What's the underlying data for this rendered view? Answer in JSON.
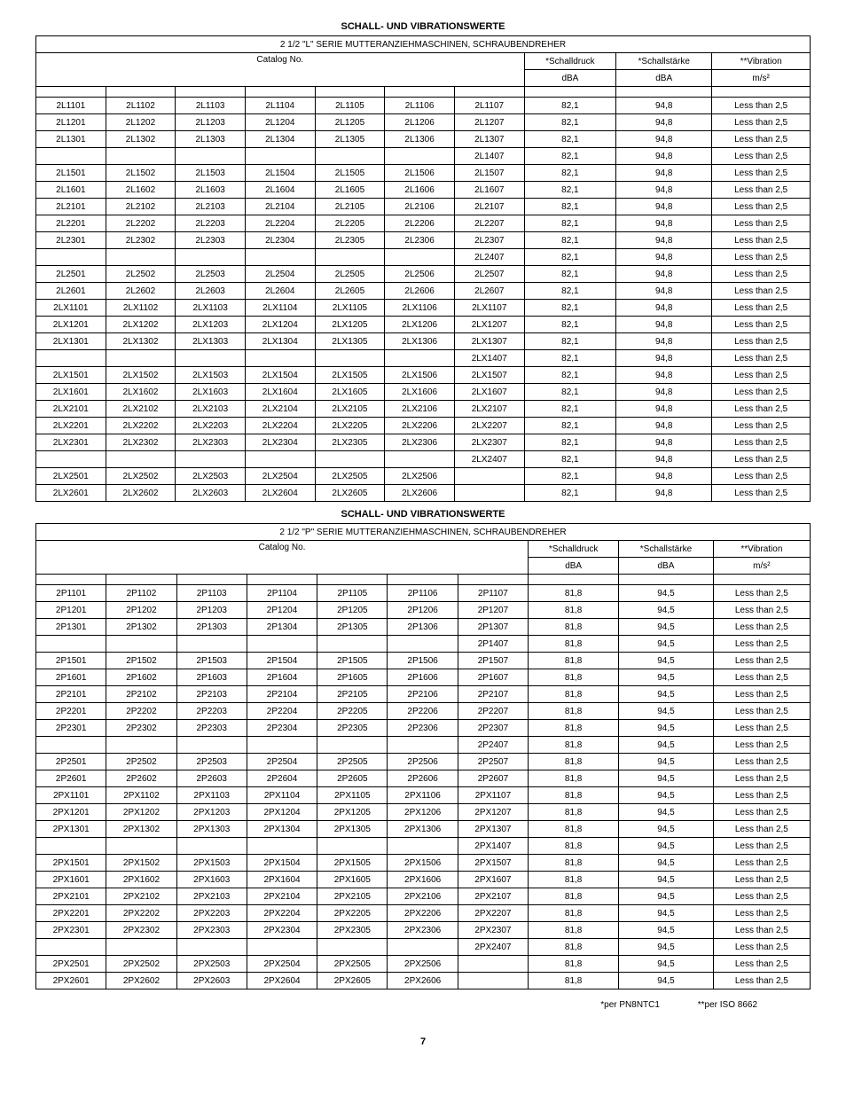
{
  "titles": {
    "t1": "SCHALL- UND VIBRATIONSWERTE",
    "t2": "SCHALL- UND VIBRATIONSWERTE"
  },
  "headers": {
    "banner1": "2 1/2 \"L\" SERIE MUTTERANZIEHMASCHINEN, SCHRAUBENDREHER",
    "banner2": "2 1/2 \"P\" SERIE MUTTERANZIEHMASCHINEN, SCHRAUBENDREHER",
    "catalog": "Catalog No.",
    "schalldruck": "*Schalldruck",
    "schallstarke": "*Schallstärke",
    "vibration": "**Vibration",
    "dba": "dBA",
    "ms2": "m/s²"
  },
  "table1": {
    "dba1": "82,1",
    "dba2": "94,8",
    "vib": "Less than 2,5",
    "rows": [
      [
        "2L1101",
        "2L1102",
        "2L1103",
        "2L1104",
        "2L1105",
        "2L1106",
        "2L1107"
      ],
      [
        "2L1201",
        "2L1202",
        "2L1203",
        "2L1204",
        "2L1205",
        "2L1206",
        "2L1207"
      ],
      [
        "2L1301",
        "2L1302",
        "2L1303",
        "2L1304",
        "2L1305",
        "2L1306",
        "2L1307"
      ],
      [
        "",
        "",
        "",
        "",
        "",
        "",
        "2L1407"
      ],
      [
        "2L1501",
        "2L1502",
        "2L1503",
        "2L1504",
        "2L1505",
        "2L1506",
        "2L1507"
      ],
      [
        "2L1601",
        "2L1602",
        "2L1603",
        "2L1604",
        "2L1605",
        "2L1606",
        "2L1607"
      ],
      [
        "2L2101",
        "2L2102",
        "2L2103",
        "2L2104",
        "2L2105",
        "2L2106",
        "2L2107"
      ],
      [
        "2L2201",
        "2L2202",
        "2L2203",
        "2L2204",
        "2L2205",
        "2L2206",
        "2L2207"
      ],
      [
        "2L2301",
        "2L2302",
        "2L2303",
        "2L2304",
        "2L2305",
        "2L2306",
        "2L2307"
      ],
      [
        "",
        "",
        "",
        "",
        "",
        "",
        "2L2407"
      ],
      [
        "2L2501",
        "2L2502",
        "2L2503",
        "2L2504",
        "2L2505",
        "2L2506",
        "2L2507"
      ],
      [
        "2L2601",
        "2L2602",
        "2L2603",
        "2L2604",
        "2L2605",
        "2L2606",
        "2L2607"
      ],
      [
        "2LX1101",
        "2LX1102",
        "2LX1103",
        "2LX1104",
        "2LX1105",
        "2LX1106",
        "2LX1107"
      ],
      [
        "2LX1201",
        "2LX1202",
        "2LX1203",
        "2LX1204",
        "2LX1205",
        "2LX1206",
        "2LX1207"
      ],
      [
        "2LX1301",
        "2LX1302",
        "2LX1303",
        "2LX1304",
        "2LX1305",
        "2LX1306",
        "2LX1307"
      ],
      [
        "",
        "",
        "",
        "",
        "",
        "",
        "2LX1407"
      ],
      [
        "2LX1501",
        "2LX1502",
        "2LX1503",
        "2LX1504",
        "2LX1505",
        "2LX1506",
        "2LX1507"
      ],
      [
        "2LX1601",
        "2LX1602",
        "2LX1603",
        "2LX1604",
        "2LX1605",
        "2LX1606",
        "2LX1607"
      ],
      [
        "2LX2101",
        "2LX2102",
        "2LX2103",
        "2LX2104",
        "2LX2105",
        "2LX2106",
        "2LX2107"
      ],
      [
        "2LX2201",
        "2LX2202",
        "2LX2203",
        "2LX2204",
        "2LX2205",
        "2LX2206",
        "2LX2207"
      ],
      [
        "2LX2301",
        "2LX2302",
        "2LX2303",
        "2LX2304",
        "2LX2305",
        "2LX2306",
        "2LX2307"
      ],
      [
        "",
        "",
        "",
        "",
        "",
        "",
        "2LX2407"
      ],
      [
        "2LX2501",
        "2LX2502",
        "2LX2503",
        "2LX2504",
        "2LX2505",
        "2LX2506",
        ""
      ],
      [
        "2LX2601",
        "2LX2602",
        "2LX2603",
        "2LX2604",
        "2LX2605",
        "2LX2606",
        ""
      ]
    ]
  },
  "table2": {
    "dba1": "81,8",
    "dba2": "94,5",
    "vib": "Less than 2,5",
    "rows": [
      [
        "2P1101",
        "2P1102",
        "2P1103",
        "2P1104",
        "2P1105",
        "2P1106",
        "2P1107"
      ],
      [
        "2P1201",
        "2P1202",
        "2P1203",
        "2P1204",
        "2P1205",
        "2P1206",
        "2P1207"
      ],
      [
        "2P1301",
        "2P1302",
        "2P1303",
        "2P1304",
        "2P1305",
        "2P1306",
        "2P1307"
      ],
      [
        "",
        "",
        "",
        "",
        "",
        "",
        "2P1407"
      ],
      [
        "2P1501",
        "2P1502",
        "2P1503",
        "2P1504",
        "2P1505",
        "2P1506",
        "2P1507"
      ],
      [
        "2P1601",
        "2P1602",
        "2P1603",
        "2P1604",
        "2P1605",
        "2P1606",
        "2P1607"
      ],
      [
        "2P2101",
        "2P2102",
        "2P2103",
        "2P2104",
        "2P2105",
        "2P2106",
        "2P2107"
      ],
      [
        "2P2201",
        "2P2202",
        "2P2203",
        "2P2204",
        "2P2205",
        "2P2206",
        "2P2207"
      ],
      [
        "2P2301",
        "2P2302",
        "2P2303",
        "2P2304",
        "2P2305",
        "2P2306",
        "2P2307"
      ],
      [
        "",
        "",
        "",
        "",
        "",
        "",
        "2P2407"
      ],
      [
        "2P2501",
        "2P2502",
        "2P2503",
        "2P2504",
        "2P2505",
        "2P2506",
        "2P2507"
      ],
      [
        "2P2601",
        "2P2602",
        "2P2603",
        "2P2604",
        "2P2605",
        "2P2606",
        "2P2607"
      ],
      [
        "2PX1101",
        "2PX1102",
        "2PX1103",
        "2PX1104",
        "2PX1105",
        "2PX1106",
        "2PX1107"
      ],
      [
        "2PX1201",
        "2PX1202",
        "2PX1203",
        "2PX1204",
        "2PX1205",
        "2PX1206",
        "2PX1207"
      ],
      [
        "2PX1301",
        "2PX1302",
        "2PX1303",
        "2PX1304",
        "2PX1305",
        "2PX1306",
        "2PX1307"
      ],
      [
        "",
        "",
        "",
        "",
        "",
        "",
        "2PX1407"
      ],
      [
        "2PX1501",
        "2PX1502",
        "2PX1503",
        "2PX1504",
        "2PX1505",
        "2PX1506",
        "2PX1507"
      ],
      [
        "2PX1601",
        "2PX1602",
        "2PX1603",
        "2PX1604",
        "2PX1605",
        "2PX1606",
        "2PX1607"
      ],
      [
        "2PX2101",
        "2PX2102",
        "2PX2103",
        "2PX2104",
        "2PX2105",
        "2PX2106",
        "2PX2107"
      ],
      [
        "2PX2201",
        "2PX2202",
        "2PX2203",
        "2PX2204",
        "2PX2205",
        "2PX2206",
        "2PX2207"
      ],
      [
        "2PX2301",
        "2PX2302",
        "2PX2303",
        "2PX2304",
        "2PX2305",
        "2PX2306",
        "2PX2307"
      ],
      [
        "",
        "",
        "",
        "",
        "",
        "",
        "2PX2407"
      ],
      [
        "2PX2501",
        "2PX2502",
        "2PX2503",
        "2PX2504",
        "2PX2505",
        "2PX2506",
        ""
      ],
      [
        "2PX2601",
        "2PX2602",
        "2PX2603",
        "2PX2604",
        "2PX2605",
        "2PX2606",
        ""
      ]
    ]
  },
  "footnote": {
    "f1": "*per PN8NTC1",
    "f2": "**per ISO 8662"
  },
  "page": "7"
}
